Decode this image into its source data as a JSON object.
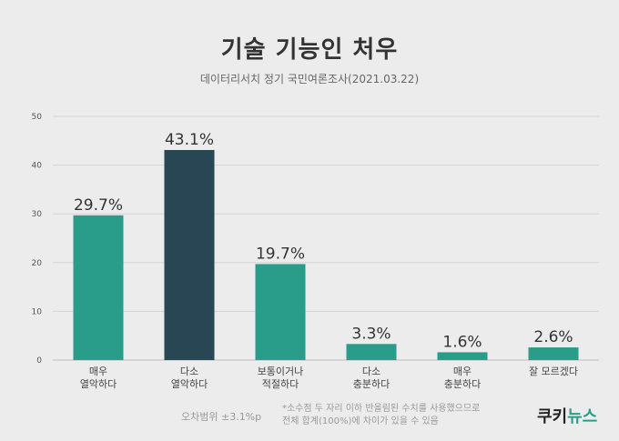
{
  "header": {
    "title": "기술 기능인 처우",
    "subtitle": "데이터리서치 정기 국민여론조사(2021.03.22)"
  },
  "colors": {
    "teal": "#2a9d8a",
    "dark": "#284653"
  },
  "chart_data": {
    "type": "bar",
    "ylim": [
      0,
      50
    ],
    "yticks": [
      0,
      10,
      20,
      30,
      40,
      50
    ],
    "grid": true,
    "categories": [
      [
        "매우",
        "열악하다"
      ],
      [
        "다소",
        "열악하다"
      ],
      [
        "보통이거나",
        "적절하다"
      ],
      [
        "다소",
        "충분하다"
      ],
      [
        "매우",
        "충분하다"
      ],
      [
        "잘 모르겠다"
      ]
    ],
    "values": [
      29.7,
      43.1,
      19.7,
      3.3,
      1.6,
      2.6
    ],
    "value_labels": [
      "29.7%",
      "43.1%",
      "19.7%",
      "3.3%",
      "1.6%",
      "2.6%"
    ],
    "highlight_index": 1
  },
  "footer": {
    "margin_of_error": "오차범위 ±3.1%p",
    "note_line1": "*소수점 두 자리 이하 반올림된 수치를 사용했으므로",
    "note_line2": "전체 합계(100%)에 차이가 있을 수 있음",
    "brand_part1": "쿠키",
    "brand_part2": "뉴스"
  }
}
